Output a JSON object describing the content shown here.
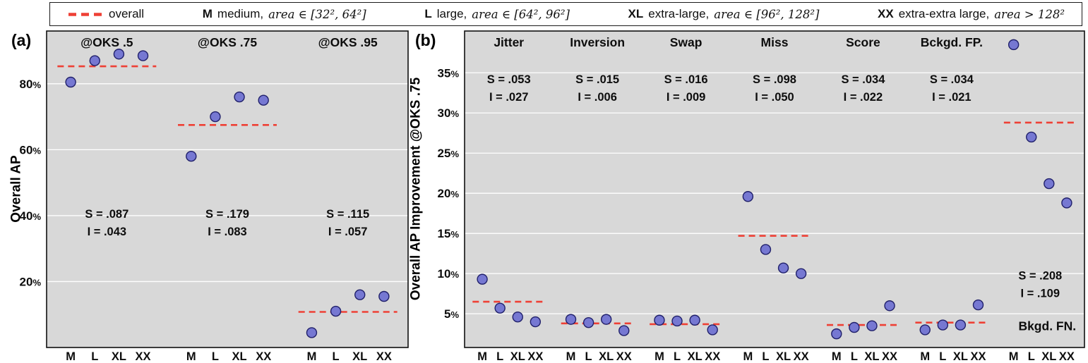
{
  "legend": {
    "overall_label": "overall",
    "dash_color": "#ee4035",
    "entries": [
      {
        "key": "M",
        "desc": "medium,",
        "math": "area ∈ [32², 64²]"
      },
      {
        "key": "L",
        "desc": "large,",
        "math": "area ∈ [64², 96²]"
      },
      {
        "key": "XL",
        "desc": "extra-large,",
        "math": "area ∈ [96², 128²]"
      },
      {
        "key": "XX",
        "desc": "extra-extra large,",
        "math": "area > 128²"
      }
    ]
  },
  "styles": {
    "plot_bg": "#d8d8d8",
    "grid_color": "#ffffff",
    "point_color": "#7678d2",
    "point_edge": "#20206a",
    "overall_color": "#ee4035"
  },
  "chart_data": [
    {
      "type": "scatter",
      "panel_label": "(a)",
      "ylabel": "Overall AP",
      "ylim": [
        0,
        96
      ],
      "yticks": [
        20,
        40,
        60,
        80
      ],
      "ytick_suffix": "%",
      "grid": true,
      "legend_position": "top",
      "categories": [
        "M",
        "L",
        "XL",
        "XX"
      ],
      "stats_frac": 0.59,
      "groups": [
        {
          "label": "@OKS .5",
          "values": [
            80.5,
            87,
            89,
            88.5
          ],
          "overall": 85.3,
          "stats": {
            "s": "S = .087",
            "i": "I = .043"
          }
        },
        {
          "label": "@OKS .75",
          "values": [
            58,
            70,
            76,
            75
          ],
          "overall": 67.5,
          "stats": {
            "s": "S = .179",
            "i": "I = .083"
          }
        },
        {
          "label": "@OKS .95",
          "values": [
            4.5,
            11,
            16,
            15.5
          ],
          "overall": 10.8,
          "stats": {
            "s": "S = .115",
            "i": "I = .057"
          }
        }
      ]
    },
    {
      "type": "scatter",
      "panel_label": "(b)",
      "ylabel": "Overall AP Improvement @OKS .75",
      "ylim": [
        0.8,
        40.2
      ],
      "yticks": [
        5,
        10,
        15,
        20,
        25,
        30,
        35
      ],
      "ytick_suffix": "%",
      "grid": true,
      "legend_position": "top",
      "categories": [
        "M",
        "L",
        "XL",
        "XX"
      ],
      "stats_frac": 0.165,
      "groups": [
        {
          "label": "Jitter",
          "values": [
            9.3,
            5.7,
            4.6,
            4.0
          ],
          "overall": 6.5,
          "stats": {
            "s": "S = .053",
            "i": "I = .027"
          }
        },
        {
          "label": "Inversion",
          "values": [
            4.3,
            3.9,
            4.3,
            2.9
          ],
          "overall": 3.8,
          "stats": {
            "s": "S = .015",
            "i": "I = .006"
          }
        },
        {
          "label": "Swap",
          "values": [
            4.2,
            4.1,
            4.2,
            3.0
          ],
          "overall": 3.7,
          "stats": {
            "s": "S = .016",
            "i": "I = .009"
          }
        },
        {
          "label": "Miss",
          "values": [
            19.6,
            13.0,
            10.7,
            10.0
          ],
          "overall": 14.7,
          "stats": {
            "s": "S = .098",
            "i": "I = .050"
          }
        },
        {
          "label": "Score",
          "values": [
            2.5,
            3.3,
            3.5,
            6.0
          ],
          "overall": 3.6,
          "stats": {
            "s": "S = .034",
            "i": "I = .022"
          }
        },
        {
          "label": "Bckgd. FP.",
          "values": [
            3.0,
            3.6,
            3.6,
            6.1
          ],
          "overall": 3.9,
          "stats": {
            "s": "S = .034",
            "i": "I = .021"
          }
        },
        {
          "label": "",
          "bottom_label": "Bkgd. FN.",
          "values": [
            38.5,
            27.0,
            21.2,
            18.8
          ],
          "overall": 28.8,
          "stats": {
            "s": "S = .208",
            "i": "I = .109"
          },
          "stats_frac": 0.785
        }
      ]
    }
  ]
}
